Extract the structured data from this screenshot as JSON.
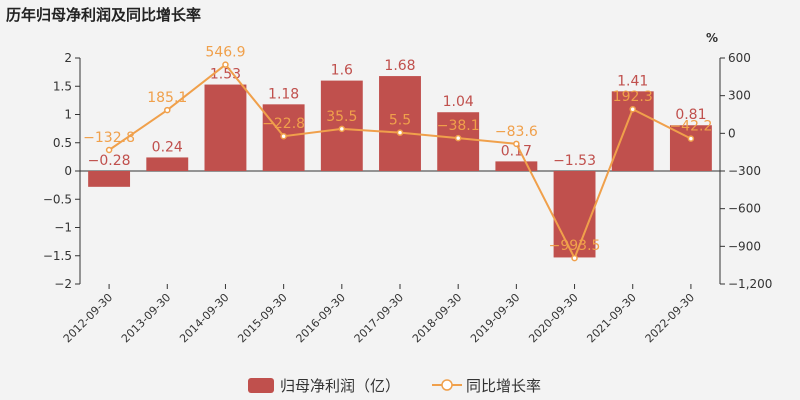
{
  "chart_data": {
    "type": "bar",
    "title": "历年归母净利润及同比增长率",
    "categories": [
      "2012-09-30",
      "2013-09-30",
      "2014-09-30",
      "2015-09-30",
      "2016-09-30",
      "2017-09-30",
      "2018-09-30",
      "2019-09-30",
      "2020-09-30",
      "2021-09-30",
      "2022-09-30"
    ],
    "series": [
      {
        "name": "归母净利润（亿）",
        "type": "bar",
        "axis": "left",
        "color": "#c0504d",
        "values": [
          -0.28,
          0.24,
          1.53,
          1.18,
          1.6,
          1.68,
          1.04,
          0.17,
          -1.53,
          1.41,
          0.81
        ],
        "labels": [
          "−0.28",
          "0.24",
          "1.53",
          "1.18",
          "1.6",
          "1.68",
          "1.04",
          "0.17",
          "−1.53",
          "1.41",
          "0.81"
        ]
      },
      {
        "name": "同比增长率",
        "type": "line",
        "axis": "right",
        "color": "#f0a04b",
        "values": [
          -132.8,
          185.1,
          546.9,
          -22.8,
          35.5,
          5.5,
          -38.1,
          -83.6,
          -993.5,
          192.3,
          -42.2
        ],
        "labels": [
          "−132.8",
          "185.1",
          "546.9",
          "−22.8",
          "35.5",
          "5.5",
          "−38.1",
          "−83.6",
          "−993.5",
          "192.3",
          "−42.2"
        ]
      }
    ],
    "left_axis": {
      "ylim": [
        -2,
        2
      ],
      "ticks": [
        2,
        1.5,
        1,
        0.5,
        0,
        -0.5,
        -1,
        -1.5,
        -2
      ],
      "tick_labels": [
        "2",
        "1.5",
        "1",
        "0.5",
        "0",
        "−0.5",
        "−1",
        "−1.5",
        "−2"
      ]
    },
    "right_axis": {
      "unit": "%",
      "ylim": [
        -1200,
        600
      ],
      "ticks": [
        600,
        300,
        0,
        -300,
        -600,
        -900,
        -1200
      ],
      "tick_labels": [
        "600",
        "300",
        "0",
        "−300",
        "−600",
        "−900",
        "−1,200"
      ]
    },
    "grid": false,
    "legend_position": "bottom"
  }
}
